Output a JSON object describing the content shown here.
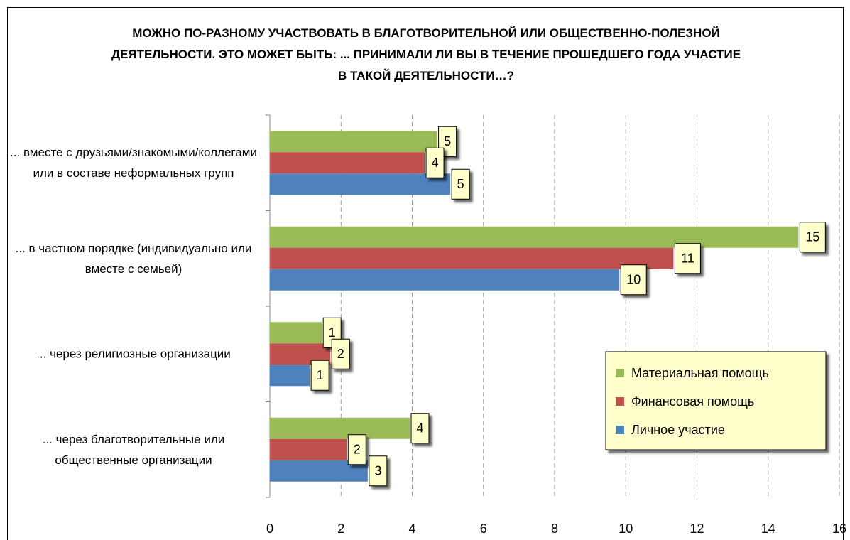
{
  "chart_data": {
    "type": "hbar",
    "title": "МОЖНО ПО-РАЗНОМУ УЧАСТВОВАТЬ В БЛАГОТВОРИТЕЛЬНОЙ ИЛИ ОБЩЕСТВЕННО-ПОЛЕЗНОЙ ДЕЯТЕЛЬНОСТИ. ЭТО МОЖЕТ БЫТЬ: ... ПРИНИМАЛИ ЛИ ВЫ В ТЕЧЕНИЕ ПРОШЕДШЕГО ГОДА УЧАСТИЕ В ТАКОЙ ДЕЯТЕЛЬНОСТИ…?",
    "categories": [
      "... вместе с друзьями/знакомыми/коллегами или в составе неформальных групп",
      "... в частном порядке (индивидуально или вместе с семьей)",
      "... через религиозные организации",
      "... через благотворительные или общественные организации"
    ],
    "series": [
      {
        "name": "Материальная помощь",
        "color": "#9bbb59",
        "values": [
          4.7,
          14.85,
          1.46,
          3.93
        ],
        "value_labels": [
          "5",
          "15",
          "1",
          "4"
        ]
      },
      {
        "name": "Финансовая помощь",
        "color": "#c0504d",
        "values": [
          4.35,
          11.34,
          1.7,
          2.16
        ],
        "value_labels": [
          "4",
          "11",
          "2",
          "2"
        ]
      },
      {
        "name": "Личное участие",
        "color": "#4f81bd",
        "values": [
          5.07,
          9.82,
          1.12,
          2.75
        ],
        "value_labels": [
          "5",
          "10",
          "1",
          "3"
        ]
      }
    ],
    "xlim": [
      0,
      16
    ],
    "xticks": [
      0,
      2,
      4,
      6,
      8,
      10,
      12,
      14,
      16
    ],
    "grid": true,
    "legend": "lower right"
  }
}
